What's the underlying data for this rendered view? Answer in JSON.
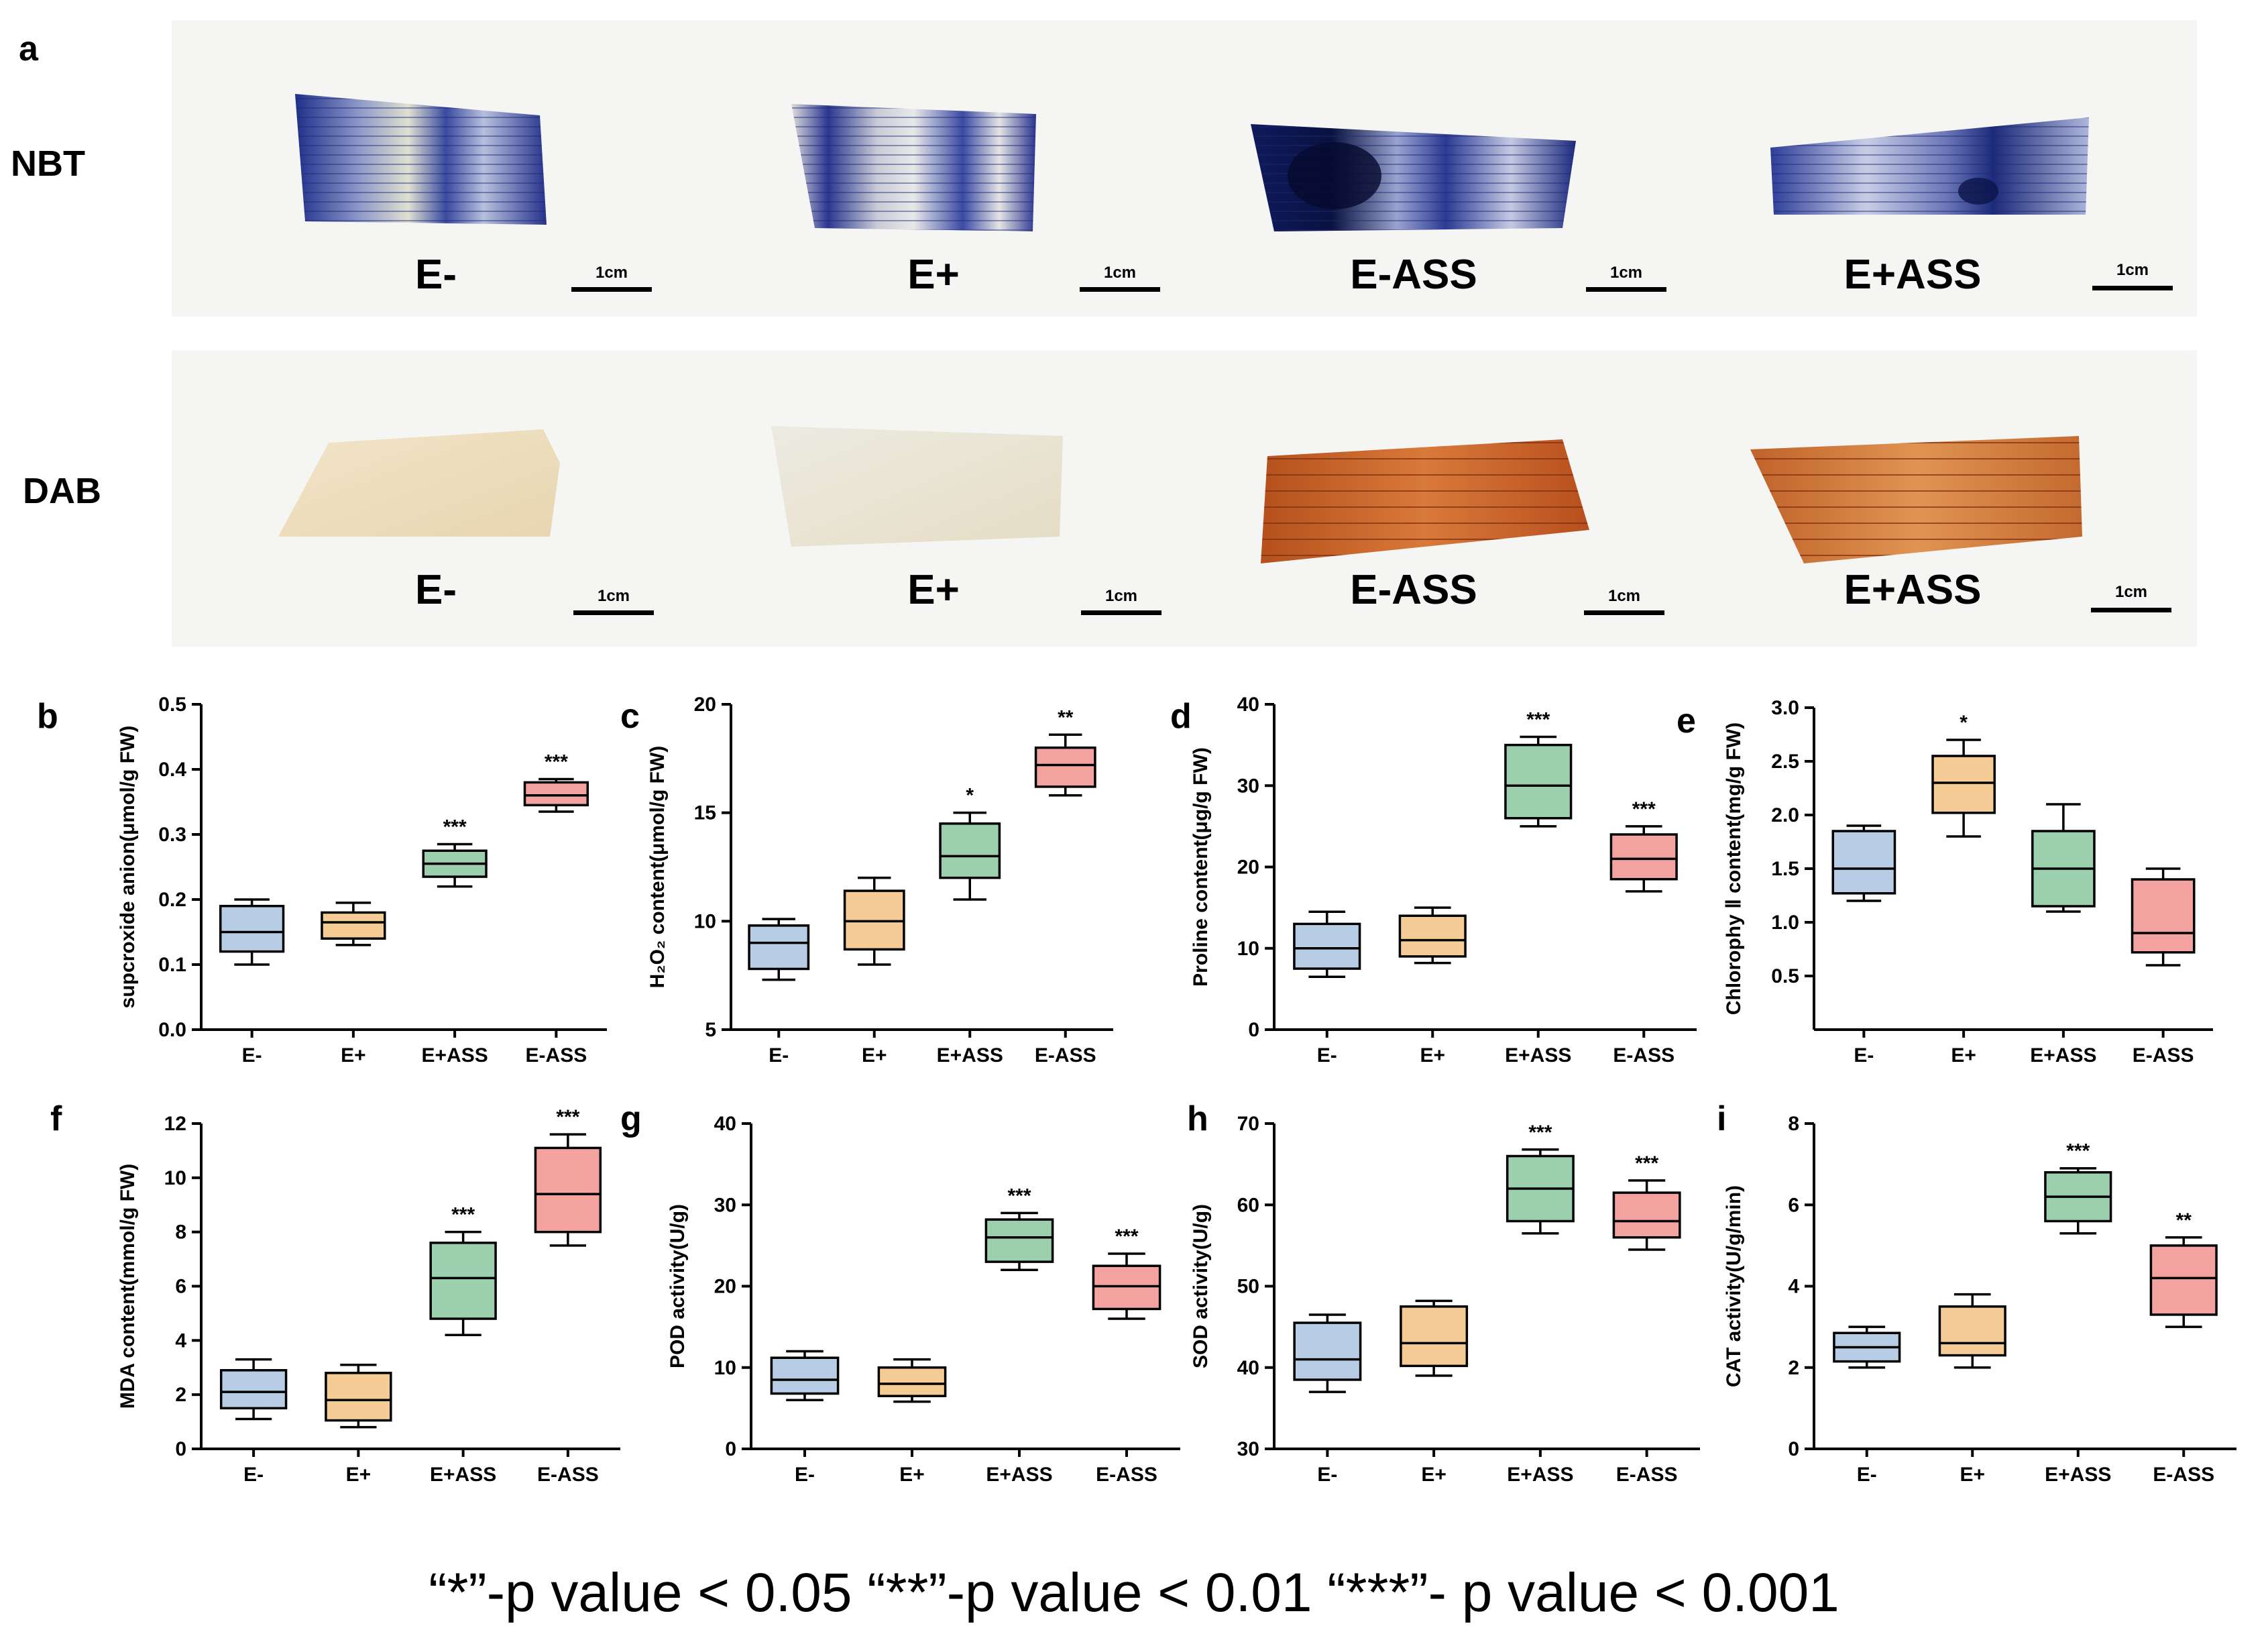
{
  "legend": "“*”-p value < 0.05 “**”-p value < 0.01  “***”- p value < 0.001",
  "colors": {
    "E-": "#b7cde6",
    "E+": "#f6cc96",
    "E+ASS": "#9ccfae",
    "E-ASS": "#f3a2a0"
  },
  "panel_a": {
    "letter": "a",
    "scale_label": "1cm",
    "rows": [
      {
        "label": "NBT",
        "stain": "blue",
        "groups": [
          "E-",
          "E+",
          "E-ASS",
          "E+ASS"
        ]
      },
      {
        "label": "DAB",
        "stain": "brown",
        "groups": [
          "E-",
          "E+",
          "E-ASS",
          "E+ASS"
        ]
      }
    ]
  },
  "chart_data": [
    {
      "letter": "b",
      "type": "box",
      "ylabel": "supcroxide anion(μmol/g FW)",
      "ylim": [
        0.0,
        0.5
      ],
      "yticks": [
        0.0,
        0.1,
        0.2,
        0.3,
        0.4,
        0.5
      ],
      "categories": [
        "E-",
        "E+",
        "E+ASS",
        "E-ASS"
      ],
      "boxes": [
        {
          "min": 0.1,
          "q1": 0.12,
          "median": 0.15,
          "q3": 0.19,
          "max": 0.2,
          "sig": ""
        },
        {
          "min": 0.13,
          "q1": 0.14,
          "median": 0.165,
          "q3": 0.18,
          "max": 0.195,
          "sig": ""
        },
        {
          "min": 0.22,
          "q1": 0.235,
          "median": 0.255,
          "q3": 0.275,
          "max": 0.285,
          "sig": "***"
        },
        {
          "min": 0.335,
          "q1": 0.345,
          "median": 0.36,
          "q3": 0.38,
          "max": 0.385,
          "sig": "***"
        }
      ]
    },
    {
      "letter": "c",
      "type": "box",
      "ylabel": "H₂O₂ content(μmol/g FW)",
      "ylim": [
        5,
        20
      ],
      "yticks": [
        5,
        10,
        15,
        20
      ],
      "categories": [
        "E-",
        "E+",
        "E+ASS",
        "E-ASS"
      ],
      "boxes": [
        {
          "min": 7.3,
          "q1": 7.8,
          "median": 9.0,
          "q3": 9.8,
          "max": 10.1,
          "sig": ""
        },
        {
          "min": 8.0,
          "q1": 8.7,
          "median": 10.0,
          "q3": 11.4,
          "max": 12.0,
          "sig": ""
        },
        {
          "min": 11.0,
          "q1": 12.0,
          "median": 13.0,
          "q3": 14.5,
          "max": 15.0,
          "sig": "*"
        },
        {
          "min": 15.8,
          "q1": 16.2,
          "median": 17.2,
          "q3": 18.0,
          "max": 18.6,
          "sig": "**"
        }
      ]
    },
    {
      "letter": "d",
      "type": "box",
      "ylabel": "Proline content(μg/g FW)",
      "ylim": [
        0,
        40
      ],
      "yticks": [
        0,
        10,
        20,
        30,
        40
      ],
      "categories": [
        "E-",
        "E+",
        "E+ASS",
        "E-ASS"
      ],
      "boxes": [
        {
          "min": 6.5,
          "q1": 7.5,
          "median": 10.0,
          "q3": 13.0,
          "max": 14.5,
          "sig": ""
        },
        {
          "min": 8.2,
          "q1": 9.0,
          "median": 11.0,
          "q3": 14.0,
          "max": 15.0,
          "sig": ""
        },
        {
          "min": 25.0,
          "q1": 26.0,
          "median": 30.0,
          "q3": 35.0,
          "max": 36.0,
          "sig": "***"
        },
        {
          "min": 17.0,
          "q1": 18.5,
          "median": 21.0,
          "q3": 24.0,
          "max": 25.0,
          "sig": "***"
        }
      ]
    },
    {
      "letter": "e",
      "type": "box",
      "ylabel": "Chlorophy Ⅱ content(mg/g FW)",
      "ylim": [
        0.0,
        3.0
      ],
      "yticks": [
        0.5,
        1.0,
        1.5,
        2.0,
        2.5,
        3.0
      ],
      "categories": [
        "E-",
        "E+",
        "E+ASS",
        "E-ASS"
      ],
      "boxes": [
        {
          "min": 1.2,
          "q1": 1.27,
          "median": 1.5,
          "q3": 1.85,
          "max": 1.9,
          "sig": ""
        },
        {
          "min": 1.8,
          "q1": 2.02,
          "median": 2.3,
          "q3": 2.55,
          "max": 2.7,
          "sig": "*"
        },
        {
          "min": 1.1,
          "q1": 1.15,
          "median": 1.5,
          "q3": 1.85,
          "max": 2.1,
          "sig": ""
        },
        {
          "min": 0.6,
          "q1": 0.72,
          "median": 0.9,
          "q3": 1.4,
          "max": 1.5,
          "sig": ""
        }
      ]
    },
    {
      "letter": "f",
      "type": "box",
      "ylabel": "MDA content(mmol/g FW)",
      "ylim": [
        0,
        12
      ],
      "yticks": [
        0,
        2,
        4,
        6,
        8,
        10,
        12
      ],
      "categories": [
        "E-",
        "E+",
        "E+ASS",
        "E-ASS"
      ],
      "boxes": [
        {
          "min": 1.1,
          "q1": 1.5,
          "median": 2.1,
          "q3": 2.9,
          "max": 3.3,
          "sig": ""
        },
        {
          "min": 0.8,
          "q1": 1.05,
          "median": 1.8,
          "q3": 2.8,
          "max": 3.1,
          "sig": ""
        },
        {
          "min": 4.2,
          "q1": 4.8,
          "median": 6.3,
          "q3": 7.6,
          "max": 8.0,
          "sig": "***"
        },
        {
          "min": 7.5,
          "q1": 8.0,
          "median": 9.4,
          "q3": 11.1,
          "max": 11.6,
          "sig": "***"
        }
      ]
    },
    {
      "letter": "g",
      "type": "box",
      "ylabel": "POD activity(U/g)",
      "ylim": [
        0,
        40
      ],
      "yticks": [
        0,
        10,
        20,
        30,
        40
      ],
      "categories": [
        "E-",
        "E+",
        "E+ASS",
        "E-ASS"
      ],
      "boxes": [
        {
          "min": 6.0,
          "q1": 6.8,
          "median": 8.5,
          "q3": 11.2,
          "max": 12.0,
          "sig": ""
        },
        {
          "min": 5.8,
          "q1": 6.5,
          "median": 8.0,
          "q3": 10.0,
          "max": 11.0,
          "sig": ""
        },
        {
          "min": 22.0,
          "q1": 23.0,
          "median": 26.0,
          "q3": 28.2,
          "max": 29.0,
          "sig": "***"
        },
        {
          "min": 16.0,
          "q1": 17.2,
          "median": 20.0,
          "q3": 22.5,
          "max": 24.0,
          "sig": "***"
        }
      ]
    },
    {
      "letter": "h",
      "type": "box",
      "ylabel": "SOD activity(U/g)",
      "ylim": [
        30,
        70
      ],
      "yticks": [
        30,
        40,
        50,
        60,
        70
      ],
      "categories": [
        "E-",
        "E+",
        "E+ASS",
        "E-ASS"
      ],
      "boxes": [
        {
          "min": 37.0,
          "q1": 38.5,
          "median": 41.0,
          "q3": 45.5,
          "max": 46.5,
          "sig": ""
        },
        {
          "min": 39.0,
          "q1": 40.2,
          "median": 43.0,
          "q3": 47.5,
          "max": 48.2,
          "sig": ""
        },
        {
          "min": 56.5,
          "q1": 58.0,
          "median": 62.0,
          "q3": 66.0,
          "max": 66.8,
          "sig": "***"
        },
        {
          "min": 54.5,
          "q1": 56.0,
          "median": 58.0,
          "q3": 61.5,
          "max": 63.0,
          "sig": "***"
        }
      ]
    },
    {
      "letter": "i",
      "type": "box",
      "ylabel": "CAT activity(U/g/min)",
      "ylim": [
        0,
        8
      ],
      "yticks": [
        0,
        2,
        4,
        6,
        8
      ],
      "categories": [
        "E-",
        "E+",
        "E+ASS",
        "E-ASS"
      ],
      "boxes": [
        {
          "min": 2.0,
          "q1": 2.15,
          "median": 2.5,
          "q3": 2.85,
          "max": 3.0,
          "sig": ""
        },
        {
          "min": 2.0,
          "q1": 2.3,
          "median": 2.6,
          "q3": 3.5,
          "max": 3.8,
          "sig": ""
        },
        {
          "min": 5.3,
          "q1": 5.6,
          "median": 6.2,
          "q3": 6.8,
          "max": 6.9,
          "sig": "***"
        },
        {
          "min": 3.0,
          "q1": 3.3,
          "median": 4.2,
          "q3": 5.0,
          "max": 5.2,
          "sig": "**"
        }
      ]
    }
  ]
}
